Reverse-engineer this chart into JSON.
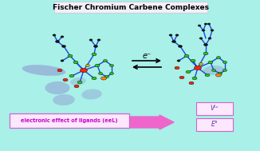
{
  "bg_color": "#a8f0e8",
  "title": "Fischer Chromium Carbene Complexes",
  "title_bg": "#f0f0f8",
  "title_fontsize": 6.5,
  "arrow_label": "e⁻",
  "box1_text": "electronic effect of ligands (eeL)",
  "box2_text1": "Vᴸᶜ",
  "box2_text2": "E°",
  "box_edge_color": "#cc66cc",
  "box_fill": "#fce8fc",
  "arrow_fill": "#ee66cc",
  "mol_green": "#22cc11",
  "mol_red": "#ff2200",
  "mol_orange": "#ff8800",
  "mol_dark": "#222222",
  "mol_black": "#111111",
  "mol_yellow": "#ddbb00",
  "mol_blue_bond": "#2244dd",
  "mol_purple_blob": "#8888cc",
  "title_edge": "#ccccdd"
}
